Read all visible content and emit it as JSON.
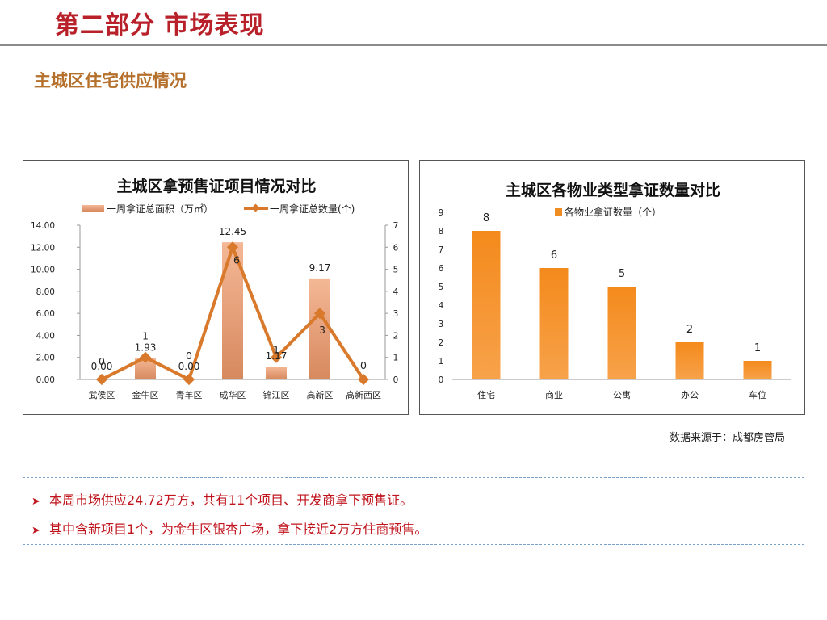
{
  "page_title": "第二部分 市场表现",
  "section_title": "主城区住宅供应情况",
  "source_note": "数据来源于：成都房管局",
  "bullets": [
    "本周市场供应24.72万方，共有11个项目、开发商拿下预售证。",
    "其中含新项目1个，为金牛区银杏广场，拿下接近2万方住商预售。"
  ],
  "colors": {
    "accent_red": "#b8202a",
    "section_brown": "#b5702c",
    "bar_area": "#e8a07a",
    "line_count": "#d8792c",
    "bar_orange": "#f08c24",
    "bullet_red": "#c0141d"
  },
  "chart_data": [
    {
      "type": "bar",
      "combo": "bar+line",
      "title": "主城区拿预售证项目情况对比",
      "categories": [
        "武侯区",
        "金牛区",
        "青羊区",
        "成华区",
        "锦江区",
        "高新区",
        "高新西区"
      ],
      "series": [
        {
          "name": "一周拿证总面积（万㎡）",
          "type": "bar",
          "axis": "left",
          "values": [
            0.0,
            1.93,
            0.0,
            12.45,
            1.17,
            9.17,
            0
          ],
          "labels": [
            "0.00",
            "1.93",
            "0.00",
            "12.45",
            "1.17",
            "9.17",
            ""
          ]
        },
        {
          "name": "一周拿证总数量(个)",
          "type": "line",
          "axis": "right",
          "values": [
            0,
            1,
            0,
            6,
            1,
            3,
            0
          ],
          "labels": [
            "0",
            "1",
            "0",
            "6",
            "1",
            "3",
            "0"
          ]
        }
      ],
      "y_left": {
        "range": [
          0,
          14
        ],
        "ticks": [
          "0.00",
          "2.00",
          "4.00",
          "6.00",
          "8.00",
          "10.00",
          "12.00",
          "14.00"
        ]
      },
      "y_right": {
        "range": [
          0,
          7
        ],
        "ticks": [
          "0",
          "1",
          "2",
          "3",
          "4",
          "5",
          "6",
          "7"
        ]
      },
      "legend": "top",
      "grid": false
    },
    {
      "type": "bar",
      "title": "主城区各物业类型拿证数量对比",
      "categories": [
        "住宅",
        "商业",
        "公寓",
        "办公",
        "车位"
      ],
      "series": [
        {
          "name": "各物业拿证数量（个）",
          "values": [
            8,
            6,
            5,
            2,
            1
          ]
        }
      ],
      "y": {
        "range": [
          0,
          9
        ],
        "ticks": [
          "0",
          "1",
          "2",
          "3",
          "4",
          "5",
          "6",
          "7",
          "8",
          "9"
        ]
      },
      "legend": "top",
      "grid": false
    }
  ]
}
